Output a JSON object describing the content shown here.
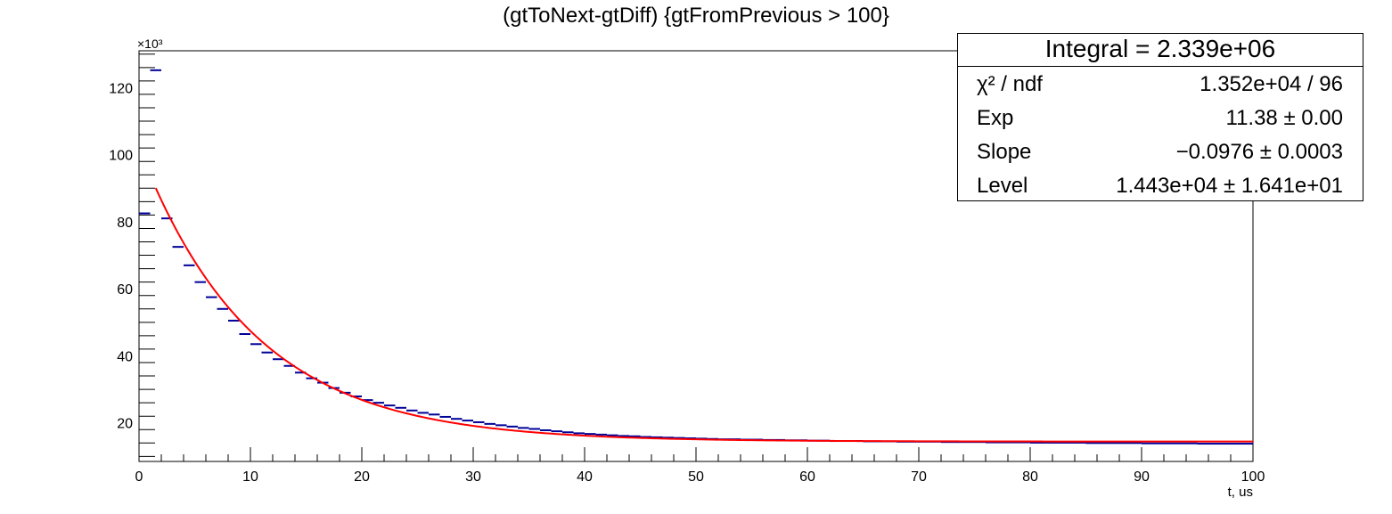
{
  "chart_data": {
    "type": "line",
    "title": "(gtToNext-gtDiff) {gtFromPrevious > 100}",
    "xlabel": "t, us",
    "ylabel": "",
    "y_multiplier_label": "×10³",
    "xlim": [
      0,
      100
    ],
    "ylim": [
      8.5,
      131
    ],
    "x_ticks": [
      0,
      10,
      20,
      30,
      40,
      50,
      60,
      70,
      80,
      90,
      100
    ],
    "y_ticks": [
      20,
      40,
      60,
      80,
      100,
      120
    ],
    "grid": false,
    "series": [
      {
        "kind": "histogram",
        "color": "#000099",
        "bin_width": 1,
        "values": [
          82.5,
          125.2,
          81.0,
          72.5,
          67.0,
          62.0,
          57.5,
          54.0,
          50.5,
          46.5,
          43.5,
          41.0,
          39.0,
          37.0,
          35.0,
          33.3,
          32.0,
          30.4,
          29.0,
          27.9,
          26.8,
          26.0,
          25.2,
          24.5,
          23.7,
          23.0,
          22.5,
          21.8,
          21.2,
          20.7,
          20.2,
          19.7,
          19.3,
          18.9,
          18.5,
          18.2,
          17.8,
          17.5,
          17.2,
          16.9,
          16.7,
          16.5,
          16.3,
          16.1,
          16.0,
          15.8,
          15.7,
          15.6,
          15.5,
          15.4,
          15.3,
          15.2,
          15.1,
          15.1,
          15.0,
          15.0,
          14.9,
          14.9,
          14.8,
          14.8,
          14.7,
          14.7,
          14.6,
          14.6,
          14.6,
          14.5,
          14.5,
          14.5,
          14.4,
          14.4,
          14.4,
          14.4,
          14.3,
          14.3,
          14.3,
          14.3,
          14.2,
          14.2,
          14.2,
          14.2,
          14.1,
          14.1,
          14.1,
          14.1,
          14.1,
          14.0,
          14.0,
          14.0,
          14.0,
          14.0,
          13.9,
          13.9,
          13.9,
          13.9,
          13.9,
          13.8,
          13.8,
          13.8,
          13.8,
          13.8
        ]
      },
      {
        "kind": "fit",
        "color": "#ff0000",
        "function": "exp(Exp + Slope*x) + Level",
        "x_range": [
          1.5,
          100
        ]
      }
    ]
  },
  "stats": {
    "header": "Integral = 2.339e+06",
    "rows": [
      {
        "name": "χ² / ndf",
        "value": "1.352e+04 / 96"
      },
      {
        "name": "Exp",
        "value": "11.38 ± 0.00"
      },
      {
        "name": "Slope",
        "value": "−0.0976 ± 0.0003"
      },
      {
        "name": "Level",
        "value": "1.443e+04 ± 1.641e+01"
      }
    ],
    "fit_params": {
      "Exp": 11.38,
      "Slope": -0.0976,
      "Level": 14.43
    }
  }
}
